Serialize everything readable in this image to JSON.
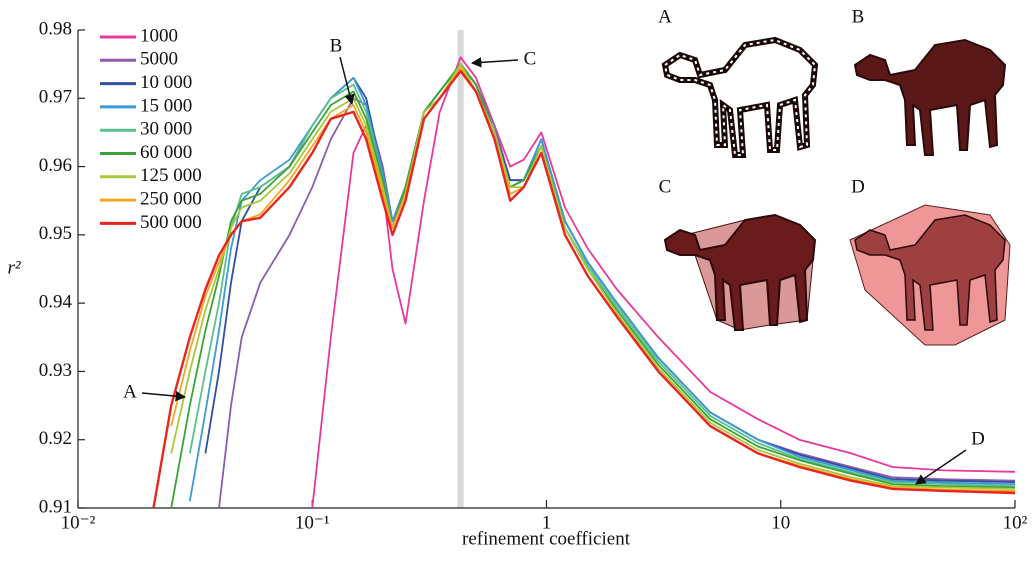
{
  "chart_data": {
    "type": "line",
    "log_x": true,
    "y_label": "r²",
    "x_label": "refinement coefficient",
    "x": [
      0.021,
      0.025,
      0.03,
      0.035,
      0.04,
      0.045,
      0.05,
      0.06,
      0.08,
      0.1,
      0.12,
      0.15,
      0.17,
      0.2,
      0.22,
      0.25,
      0.3,
      0.35,
      0.43,
      0.5,
      0.6,
      0.7,
      0.8,
      0.95,
      1.2,
      1.5,
      2,
      3,
      5,
      8,
      12,
      20,
      30,
      50,
      100
    ],
    "series": [
      {
        "name": "1000",
        "color": "#e8399b",
        "values": [
          null,
          null,
          null,
          null,
          null,
          null,
          null,
          null,
          null,
          0.91,
          0.935,
          0.962,
          0.966,
          0.957,
          0.945,
          0.937,
          0.955,
          0.968,
          0.976,
          0.973,
          0.966,
          0.96,
          0.961,
          0.965,
          0.954,
          0.948,
          0.942,
          0.935,
          0.927,
          0.923,
          0.92,
          0.918,
          0.916,
          0.9155,
          0.9153
        ]
      },
      {
        "name": "5000",
        "color": "#8e5bb0",
        "values": [
          null,
          null,
          null,
          null,
          0.91,
          0.925,
          0.935,
          0.943,
          0.95,
          0.957,
          0.964,
          0.97,
          0.969,
          0.96,
          0.952,
          0.957,
          0.968,
          0.971,
          0.975,
          0.972,
          0.966,
          0.958,
          0.958,
          0.964,
          0.952,
          0.946,
          0.94,
          0.932,
          0.924,
          0.92,
          0.918,
          0.916,
          0.9145,
          0.9142,
          0.914
        ]
      },
      {
        "name": "10 000",
        "color": "#2f4fa0",
        "values": [
          null,
          null,
          null,
          0.918,
          0.93,
          0.943,
          0.952,
          0.957,
          0.96,
          0.966,
          0.97,
          0.973,
          0.97,
          0.959,
          0.952,
          0.957,
          0.968,
          0.971,
          0.975,
          0.972,
          0.965,
          0.958,
          0.958,
          0.964,
          0.952,
          0.946,
          0.94,
          0.932,
          0.924,
          0.92,
          0.9178,
          0.9158,
          0.9142,
          0.914,
          0.9138
        ]
      },
      {
        "name": "15 000",
        "color": "#3a9bd5",
        "values": [
          null,
          null,
          0.911,
          0.924,
          0.936,
          0.948,
          0.955,
          0.958,
          0.961,
          0.966,
          0.97,
          0.973,
          0.969,
          0.959,
          0.952,
          0.957,
          0.968,
          0.971,
          0.975,
          0.972,
          0.965,
          0.957,
          0.958,
          0.964,
          0.952,
          0.946,
          0.94,
          0.932,
          0.924,
          0.92,
          0.9175,
          0.9155,
          0.914,
          0.9137,
          0.9135
        ]
      },
      {
        "name": "30 000",
        "color": "#5cbf8f",
        "values": [
          null,
          null,
          0.918,
          0.93,
          0.94,
          0.951,
          0.956,
          0.957,
          0.96,
          0.966,
          0.97,
          0.972,
          0.968,
          0.958,
          0.951,
          0.957,
          0.968,
          0.971,
          0.975,
          0.972,
          0.965,
          0.957,
          0.958,
          0.963,
          0.951,
          0.9455,
          0.9395,
          0.9315,
          0.9235,
          0.9195,
          0.9172,
          0.9152,
          0.9138,
          0.9135,
          0.9132
        ]
      },
      {
        "name": "60 000",
        "color": "#3aa335",
        "values": [
          null,
          0.91,
          0.925,
          0.936,
          0.944,
          0.952,
          0.955,
          0.956,
          0.96,
          0.965,
          0.969,
          0.971,
          0.967,
          0.958,
          0.951,
          0.957,
          0.968,
          0.971,
          0.975,
          0.972,
          0.965,
          0.957,
          0.958,
          0.963,
          0.951,
          0.945,
          0.939,
          0.931,
          0.923,
          0.919,
          0.917,
          0.915,
          0.9135,
          0.9132,
          0.913
        ]
      },
      {
        "name": "125 000",
        "color": "#a8c83a",
        "values": [
          null,
          0.918,
          0.93,
          0.939,
          0.945,
          0.951,
          0.954,
          0.955,
          0.959,
          0.964,
          0.968,
          0.97,
          0.966,
          0.957,
          0.951,
          0.956,
          0.968,
          0.97,
          0.975,
          0.971,
          0.965,
          0.957,
          0.957,
          0.963,
          0.951,
          0.945,
          0.9385,
          0.9305,
          0.9225,
          0.9185,
          0.9165,
          0.9145,
          0.9132,
          0.913,
          0.9128
        ]
      },
      {
        "name": "250 000",
        "color": "#f5a623",
        "values": [
          null,
          0.922,
          0.933,
          0.941,
          0.946,
          0.95,
          0.952,
          0.953,
          0.958,
          0.963,
          0.967,
          0.969,
          0.965,
          0.956,
          0.951,
          0.956,
          0.967,
          0.97,
          0.9745,
          0.971,
          0.964,
          0.956,
          0.957,
          0.962,
          0.95,
          0.944,
          0.938,
          0.93,
          0.922,
          0.918,
          0.9162,
          0.9142,
          0.913,
          0.9127,
          0.9125
        ]
      },
      {
        "name": "500 000",
        "color": "#e8261e",
        "values": [
          0.91,
          0.925,
          0.935,
          0.942,
          0.947,
          0.95,
          0.952,
          0.9525,
          0.957,
          0.962,
          0.967,
          0.968,
          0.964,
          0.955,
          0.95,
          0.955,
          0.967,
          0.97,
          0.974,
          0.971,
          0.964,
          0.955,
          0.957,
          0.962,
          0.95,
          0.944,
          0.938,
          0.93,
          0.922,
          0.918,
          0.916,
          0.914,
          0.9128,
          0.9125,
          0.9122
        ]
      }
    ],
    "xlim": [
      0.01,
      100
    ],
    "xticks": [
      {
        "value": 0.01,
        "label": "10⁻²"
      },
      {
        "value": 0.1,
        "label": "10⁻¹"
      },
      1,
      10,
      {
        "value": 100,
        "label": "10²"
      }
    ],
    "ylim": [
      0.91,
      0.98
    ],
    "yticks": [
      0.91,
      0.92,
      0.93,
      0.94,
      0.95,
      0.96,
      0.97,
      0.98
    ],
    "highlight_x": 0.43,
    "annotations": [
      "A",
      "B",
      "C",
      "D"
    ],
    "inset_labels": [
      "A",
      "B",
      "C",
      "D"
    ]
  }
}
